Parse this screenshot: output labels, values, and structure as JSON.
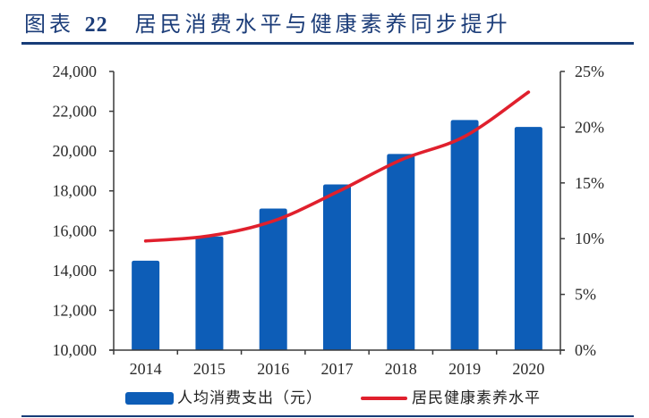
{
  "header": {
    "figure_label_text": "图表",
    "figure_label_number": "22",
    "title": "居民消费水平与健康素养同步提升"
  },
  "colors": {
    "title": "#1C3D79",
    "rule": "#173C78",
    "bar": "#0D5DB7",
    "line": "#E0202D",
    "axis": "#3a3a3a",
    "text": "#2a2a2a"
  },
  "chart_data": {
    "type": "bar",
    "subtype": "bar_line_combo_dual_axis",
    "title": "居民消费水平与健康素养同步提升",
    "xlabel": "",
    "ylabel": "",
    "y2label": "",
    "categories": [
      "2014",
      "2015",
      "2016",
      "2017",
      "2018",
      "2019",
      "2020"
    ],
    "series": [
      {
        "name": "人均消费支出（元）",
        "type": "bar",
        "axis": "left",
        "values": [
          14491,
          15712,
          17111,
          18322,
          19853,
          21559,
          21210
        ]
      },
      {
        "name": "居民健康素养水平",
        "type": "line",
        "axis": "right",
        "unit": "%",
        "values": [
          9.79,
          10.25,
          11.58,
          14.18,
          17.06,
          19.17,
          23.15
        ]
      }
    ],
    "ylim": [
      10000,
      24000
    ],
    "y_ticks": [
      10000,
      12000,
      14000,
      16000,
      18000,
      20000,
      22000,
      24000
    ],
    "y_tick_labels": [
      "10,000",
      "12,000",
      "14,000",
      "16,000",
      "18,000",
      "20,000",
      "22,000",
      "24,000"
    ],
    "y2lim": [
      0,
      25
    ],
    "y2_ticks": [
      0,
      5,
      10,
      15,
      20,
      25
    ],
    "y2_tick_labels": [
      "0%",
      "5%",
      "10%",
      "15%",
      "20%",
      "25%"
    ],
    "grid": false,
    "legend_position": "bottom"
  }
}
